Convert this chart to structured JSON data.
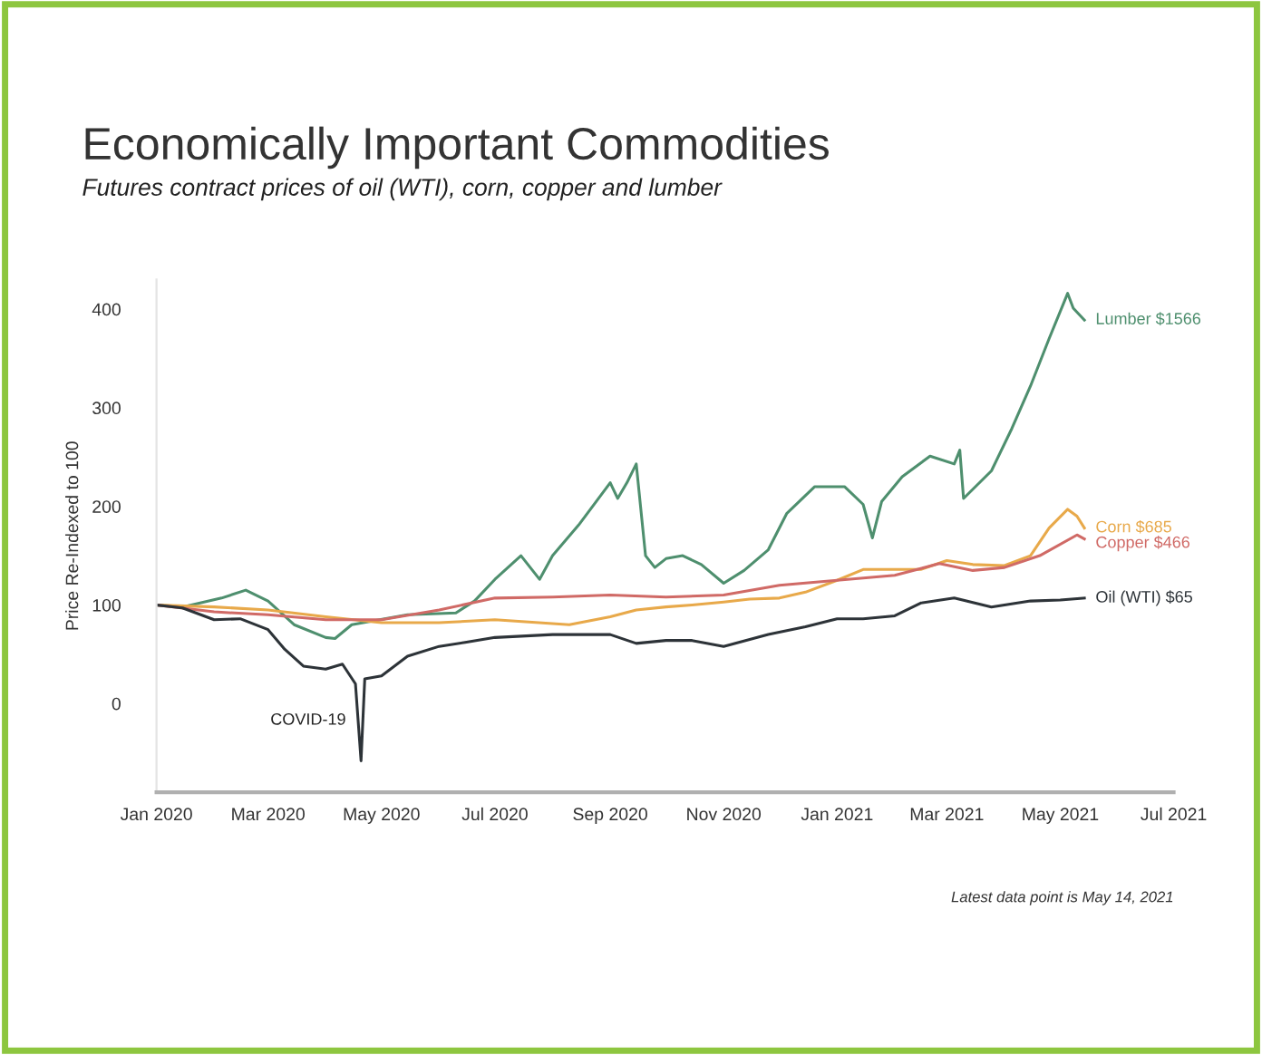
{
  "chart_data": {
    "type": "line",
    "title": "Economically Important Commodities",
    "subtitle": "Futures contract prices of oil (WTI), corn, copper and lumber",
    "ylabel": "Price Re-Indexed to 100",
    "xlim": [
      "2020-01-01",
      "2021-07-01"
    ],
    "xticks": [
      {
        "value": "2020-01-01",
        "label": "Jan 2020"
      },
      {
        "value": "2020-03-01",
        "label": "Mar 2020"
      },
      {
        "value": "2020-05-01",
        "label": "May 2020"
      },
      {
        "value": "2020-07-01",
        "label": "Jul 2020"
      },
      {
        "value": "2020-09-01",
        "label": "Sep 2020"
      },
      {
        "value": "2020-11-01",
        "label": "Nov 2020"
      },
      {
        "value": "2021-01-01",
        "label": "Jan 2021"
      },
      {
        "value": "2021-03-01",
        "label": "Mar 2021"
      },
      {
        "value": "2021-05-01",
        "label": "May 2021"
      },
      {
        "value": "2021-07-01",
        "label": "Jul 2021"
      }
    ],
    "ylim": [
      -90,
      430
    ],
    "yticks": [
      0,
      100,
      200,
      300,
      400
    ],
    "grid": false,
    "legend": false,
    "marker": "none",
    "line_style": "solid",
    "series": [
      {
        "name": "Lumber $1566",
        "color": "#4e8f6e",
        "x": [
          "2020-01-01",
          "2020-01-15",
          "2020-02-05",
          "2020-02-18",
          "2020-03-01",
          "2020-03-15",
          "2020-04-01",
          "2020-04-06",
          "2020-04-15",
          "2020-05-15",
          "2020-06-10",
          "2020-06-20",
          "2020-07-01",
          "2020-07-15",
          "2020-07-25",
          "2020-08-01",
          "2020-08-15",
          "2020-09-01",
          "2020-09-05",
          "2020-09-10",
          "2020-09-15",
          "2020-09-20",
          "2020-09-25",
          "2020-10-01",
          "2020-10-10",
          "2020-10-20",
          "2020-11-01",
          "2020-11-12",
          "2020-11-25",
          "2020-12-05",
          "2020-12-20",
          "2021-01-05",
          "2021-01-15",
          "2021-01-20",
          "2021-01-25",
          "2021-02-05",
          "2021-02-20",
          "2021-03-05",
          "2021-03-08",
          "2021-03-10",
          "2021-03-25",
          "2021-04-05",
          "2021-04-15",
          "2021-04-25",
          "2021-05-05",
          "2021-05-08",
          "2021-05-14"
        ],
        "values": [
          100,
          98,
          107,
          115,
          104,
          80,
          67,
          66,
          80,
          90,
          92,
          104,
          126,
          150,
          126,
          150,
          181,
          224,
          208,
          224,
          243,
          150,
          138,
          147,
          150,
          141,
          122,
          135,
          156,
          193,
          220,
          220,
          202,
          168,
          205,
          230,
          251,
          243,
          257,
          208,
          236,
          279,
          322,
          370,
          416,
          401,
          389
        ]
      },
      {
        "name": "Corn $685",
        "color": "#e8a94a",
        "x": [
          "2020-01-01",
          "2020-02-01",
          "2020-03-01",
          "2020-04-01",
          "2020-05-01",
          "2020-06-01",
          "2020-07-01",
          "2020-08-10",
          "2020-09-01",
          "2020-09-15",
          "2020-10-01",
          "2020-10-15",
          "2020-11-01",
          "2020-11-15",
          "2020-12-01",
          "2020-12-15",
          "2021-01-01",
          "2021-01-15",
          "2021-02-01",
          "2021-02-15",
          "2021-03-01",
          "2021-03-15",
          "2021-04-01",
          "2021-04-15",
          "2021-04-25",
          "2021-05-05",
          "2021-05-10",
          "2021-05-14"
        ],
        "values": [
          100,
          98,
          95,
          88,
          82,
          82,
          85,
          80,
          88,
          95,
          98,
          100,
          103,
          106,
          107,
          113,
          125,
          136,
          136,
          136,
          145,
          141,
          140,
          150,
          178,
          197,
          190,
          178
        ]
      },
      {
        "name": "Copper $466",
        "color": "#d06a66",
        "x": [
          "2020-01-01",
          "2020-02-01",
          "2020-03-01",
          "2020-04-01",
          "2020-05-01",
          "2020-06-01",
          "2020-07-01",
          "2020-08-01",
          "2020-09-01",
          "2020-10-01",
          "2020-11-01",
          "2020-12-01",
          "2021-01-01",
          "2021-02-01",
          "2021-02-25",
          "2021-03-15",
          "2021-04-01",
          "2021-04-20",
          "2021-05-10",
          "2021-05-14"
        ],
        "values": [
          100,
          93,
          90,
          85,
          85,
          95,
          107,
          108,
          110,
          108,
          110,
          120,
          125,
          130,
          142,
          135,
          138,
          150,
          171,
          167
        ]
      },
      {
        "name": "Oil (WTI) $65",
        "color": "#2d3338",
        "x": [
          "2020-01-01",
          "2020-01-15",
          "2020-02-01",
          "2020-02-15",
          "2020-03-01",
          "2020-03-10",
          "2020-03-20",
          "2020-04-01",
          "2020-04-10",
          "2020-04-17",
          "2020-04-20",
          "2020-04-22",
          "2020-05-01",
          "2020-05-15",
          "2020-06-01",
          "2020-06-15",
          "2020-07-01",
          "2020-08-01",
          "2020-09-01",
          "2020-09-15",
          "2020-10-01",
          "2020-10-15",
          "2020-11-01",
          "2020-11-25",
          "2020-12-15",
          "2021-01-01",
          "2021-01-15",
          "2021-02-01",
          "2021-02-15",
          "2021-03-05",
          "2021-03-25",
          "2021-04-15",
          "2021-05-01",
          "2021-05-14"
        ],
        "values": [
          100,
          97,
          85,
          86,
          75,
          55,
          38,
          35,
          40,
          20,
          -58,
          25,
          28,
          48,
          58,
          62,
          67,
          70,
          70,
          61,
          64,
          64,
          58,
          70,
          78,
          86,
          86,
          89,
          102,
          107,
          98,
          104,
          105,
          107
        ]
      }
    ],
    "annotations": [
      {
        "text": "COVID-19",
        "x": "2020-04-20",
        "y": -58
      },
      "Latest data point is May 14, 2021"
    ]
  }
}
